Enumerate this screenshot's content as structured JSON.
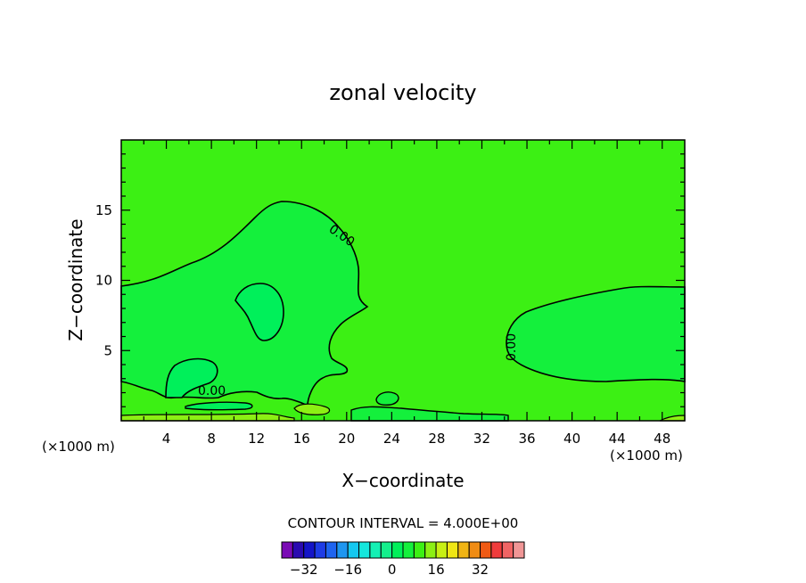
{
  "chart_data": {
    "type": "contour",
    "title": "zonal velocity",
    "xlabel": "X−coordinate",
    "ylabel": "Z−coordinate",
    "x_unit_left": "(×1000 m)",
    "x_unit_right": "(×1000 m)",
    "xlim": [
      0,
      50
    ],
    "ylim": [
      0,
      20
    ],
    "x_ticks": [
      "4",
      "8",
      "12",
      "16",
      "20",
      "24",
      "28",
      "32",
      "36",
      "40",
      "44",
      "48"
    ],
    "y_ticks": [
      "5",
      "10",
      "15"
    ],
    "contour_labels": [
      "0.00",
      "0.00",
      "0.00"
    ],
    "contour_interval_text": "CONTOUR INTERVAL = 4.000E+00",
    "colorbar": {
      "tick_labels": [
        "−32",
        "−16",
        "0",
        "16",
        "32"
      ],
      "colors": [
        "#7a0ab5",
        "#2a0ab0",
        "#1414c8",
        "#1e3ce6",
        "#1e64f0",
        "#1e96f0",
        "#14c8f0",
        "#14e6dc",
        "#14f0b4",
        "#14f08c",
        "#00f05a",
        "#14f03c",
        "#3cf014",
        "#8cf014",
        "#c8f014",
        "#f0e614",
        "#f0b414",
        "#f08c14",
        "#f05a14",
        "#f03c3c",
        "#f06464",
        "#f09696"
      ]
    },
    "regions": [
      {
        "name": "background",
        "range": "0 to 4",
        "color": "#3cf014"
      },
      {
        "name": "weak-negative",
        "range": "-4 to 0",
        "color": "#14f03c"
      },
      {
        "name": "strong-negative",
        "range": "-8 to -4",
        "color": "#00f05a"
      },
      {
        "name": "surface-positive",
        "range": "4 to 8",
        "color": "#8cf014"
      }
    ]
  }
}
